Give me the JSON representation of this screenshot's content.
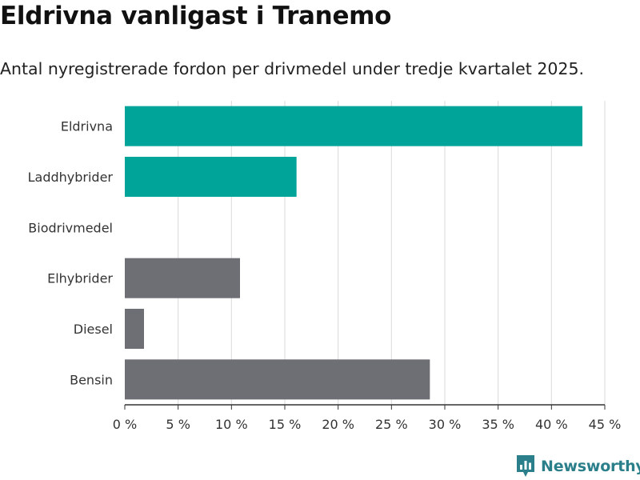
{
  "title": "Eldrivna vanligast i Tranemo",
  "subtitle": "Antal nyregistrerade fordon per drivmedel under tredje kvartalet 2025.",
  "brand": {
    "name": "Newsworthy",
    "icon": "newsworthy-logo-icon",
    "color": "#2a7f8a"
  },
  "colors": {
    "highlight": "#00a499",
    "default": "#6e6e75",
    "grid": "#d9d9d9",
    "axis": "#333333"
  },
  "chart_data": {
    "type": "bar",
    "orientation": "horizontal",
    "categories": [
      "Eldrivna",
      "Laddhybrider",
      "Biodrivmedel",
      "Elhybrider",
      "Diesel",
      "Bensin"
    ],
    "values": [
      42.9,
      16.1,
      0,
      10.8,
      1.8,
      28.6
    ],
    "highlighted": [
      true,
      true,
      true,
      false,
      false,
      false
    ],
    "xlim": [
      0,
      45
    ],
    "xticks": [
      0,
      5,
      10,
      15,
      20,
      25,
      30,
      35,
      40,
      45
    ],
    "tick_suffix": " %",
    "xlabel": "",
    "ylabel": "",
    "grid": true
  }
}
